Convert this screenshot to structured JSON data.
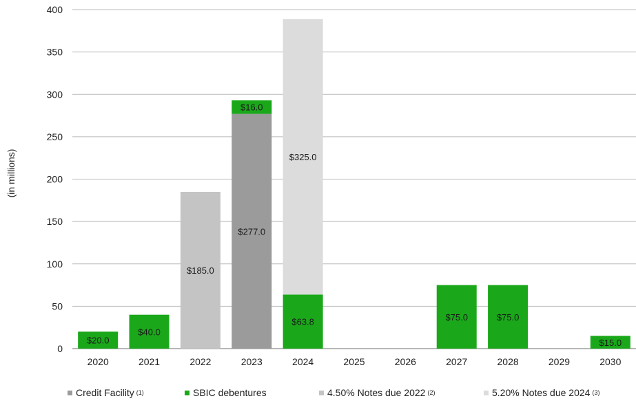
{
  "chart_data": {
    "type": "bar",
    "stacked": true,
    "categories": [
      "2020",
      "2021",
      "2022",
      "2023",
      "2024",
      "2025",
      "2026",
      "2027",
      "2028",
      "2029",
      "2030"
    ],
    "ylabel": "(in millions)",
    "ylim": [
      0,
      400
    ],
    "yticks": [
      0,
      50,
      100,
      150,
      200,
      250,
      300,
      350,
      400
    ],
    "grid": true,
    "legend_position": "bottom",
    "series": [
      {
        "key": "credit",
        "name": "Credit Facility",
        "note": "(1)",
        "color": "#9b9b9b",
        "values": [
          0,
          0,
          0,
          277.0,
          0,
          0,
          0,
          0,
          0,
          0,
          0
        ],
        "labels": [
          "",
          "",
          "",
          "$277.0",
          "",
          "",
          "",
          "",
          "",
          "",
          ""
        ]
      },
      {
        "key": "sbic",
        "name": "SBIC debentures",
        "note": "",
        "color": "#1aa81a",
        "values": [
          20.0,
          40.0,
          0,
          16.0,
          63.8,
          0,
          0,
          75.0,
          75.0,
          0,
          15.0
        ],
        "labels": [
          "$20.0",
          "$40.0",
          "",
          "$16.0",
          "$63.8",
          "",
          "",
          "$75.0",
          "$75.0",
          "",
          "$15.0"
        ]
      },
      {
        "key": "notes2022",
        "name": "4.50% Notes due 2022",
        "note": "(2)",
        "color": "#c4c4c4",
        "values": [
          0,
          0,
          185.0,
          0,
          0,
          0,
          0,
          0,
          0,
          0,
          0
        ],
        "labels": [
          "",
          "",
          "$185.0",
          "",
          "",
          "",
          "",
          "",
          "",
          "",
          ""
        ]
      },
      {
        "key": "notes2024",
        "name": "5.20% Notes due 2024",
        "note": "(3)",
        "color": "#dcdcdc",
        "values": [
          0,
          0,
          0,
          0,
          325.0,
          0,
          0,
          0,
          0,
          0,
          0
        ],
        "labels": [
          "",
          "",
          "",
          "",
          "$325.0",
          "",
          "",
          "",
          "",
          "",
          ""
        ]
      }
    ]
  }
}
